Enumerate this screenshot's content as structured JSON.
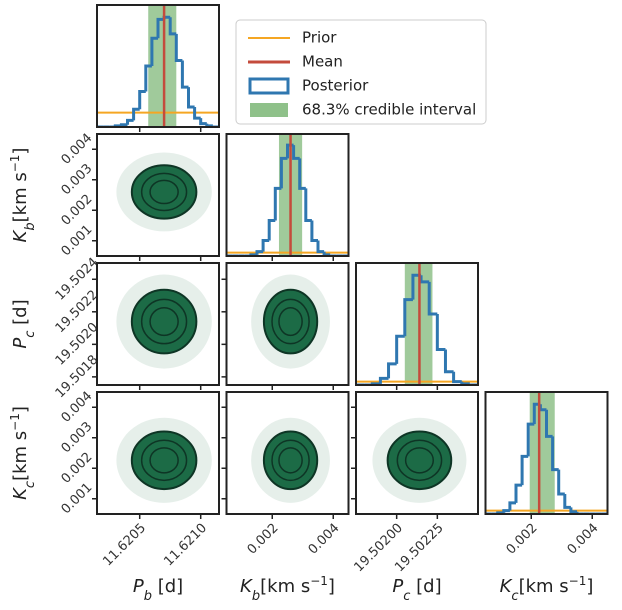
{
  "chart_data": {
    "type": "corner",
    "hist_ylim": [
      0,
      110
    ],
    "legend": [
      {
        "name": "Prior",
        "color": "#f5a623"
      },
      {
        "name": "Mean",
        "color": "#c44b3c"
      },
      {
        "name": "Posterior",
        "color": "#2f77b0"
      },
      {
        "name": "68.3% credible interval",
        "color": "#8fc18a"
      }
    ],
    "params": [
      {
        "label": [
          "P",
          "b",
          " [d]"
        ],
        "lim": [
          11.62015,
          11.62115
        ],
        "mean": 11.6207,
        "ci": [
          11.62057,
          11.6208
        ],
        "prior": 13,
        "xticks": [
          11.6205,
          {
            "value": 11.621,
            "label": "11.6210"
          }
        ],
        "yticks": [],
        "bins": [
          11.62015,
          11.6202,
          11.62025,
          11.6203,
          11.62035,
          11.6204,
          11.62045,
          11.6205,
          11.62055,
          11.6206,
          11.62065,
          11.6207,
          11.62075,
          11.6208,
          11.62085,
          11.6209,
          11.62095,
          11.621,
          11.62105,
          11.6211,
          11.62115
        ],
        "counts": [
          0,
          0,
          0,
          1,
          2,
          6,
          16,
          32,
          55,
          80,
          97,
          99,
          84,
          60,
          36,
          18,
          8,
          3,
          1,
          0
        ]
      },
      {
        "label": [
          "K",
          "b",
          "[km s",
          "−1",
          "]"
        ],
        "lim": [
          0.0005,
          0.0045
        ],
        "mean": 0.0026,
        "ci": [
          0.00222,
          0.00298
        ],
        "prior": 3,
        "xticks": [
          0.002,
          0.004
        ],
        "yticks": [
          0.001,
          0.002,
          0.003,
          0.004
        ],
        "bins": [
          0.0005,
          0.0007,
          0.0009,
          0.0011,
          0.0013,
          0.0015,
          0.0017,
          0.0019,
          0.0021,
          0.0023,
          0.0025,
          0.0027,
          0.0029,
          0.0031,
          0.0033,
          0.0035,
          0.0037,
          0.0039,
          0.0041,
          0.0043,
          0.0045
        ],
        "counts": [
          0,
          0,
          0,
          0,
          1,
          4,
          14,
          32,
          61,
          88,
          100,
          88,
          61,
          32,
          14,
          4,
          1,
          0,
          0,
          0
        ]
      },
      {
        "label": [
          "P",
          "c",
          " [d]"
        ],
        "lim": [
          19.50175,
          19.5025
        ],
        "mean": 19.50214,
        "ci": [
          19.50205,
          19.50222
        ],
        "prior": 3,
        "xticks": [
          {
            "value": 19.502,
            "label": "19.50200"
          },
          19.50225
        ],
        "yticks": [
          19.5018,
          {
            "value": 19.502,
            "label": "19.5020"
          },
          19.5022,
          19.5024
        ],
        "bins": [
          19.50175,
          19.5018,
          19.50185,
          19.5019,
          19.50195,
          19.502,
          19.50205,
          19.5021,
          19.50215,
          19.5022,
          19.50225,
          19.5023,
          19.50235,
          19.5024,
          19.50245,
          19.5025
        ],
        "counts": [
          0,
          0,
          1,
          6,
          19,
          44,
          77,
          99,
          93,
          64,
          32,
          12,
          3,
          1,
          0
        ]
      },
      {
        "label": [
          "K",
          "c",
          "[km s",
          "−1",
          "]"
        ],
        "lim": [
          0.0005,
          0.0045
        ],
        "mean": 0.00226,
        "ci": [
          0.00195,
          0.00277
        ],
        "prior": 3,
        "xticks": [
          0.002,
          0.004
        ],
        "yticks": [
          0.001,
          0.002,
          0.003,
          0.004
        ],
        "bins": [
          0.0005,
          0.0007,
          0.0009,
          0.0011,
          0.0013,
          0.0015,
          0.0017,
          0.0019,
          0.0021,
          0.0023,
          0.0025,
          0.0027,
          0.0029,
          0.0031,
          0.0033,
          0.0035,
          0.0037,
          0.0039,
          0.0041,
          0.0043,
          0.0045
        ],
        "counts": [
          0,
          0,
          1,
          3,
          10,
          26,
          52,
          81,
          99,
          94,
          70,
          40,
          18,
          6,
          2,
          0,
          0,
          0,
          0,
          0
        ]
      }
    ]
  }
}
